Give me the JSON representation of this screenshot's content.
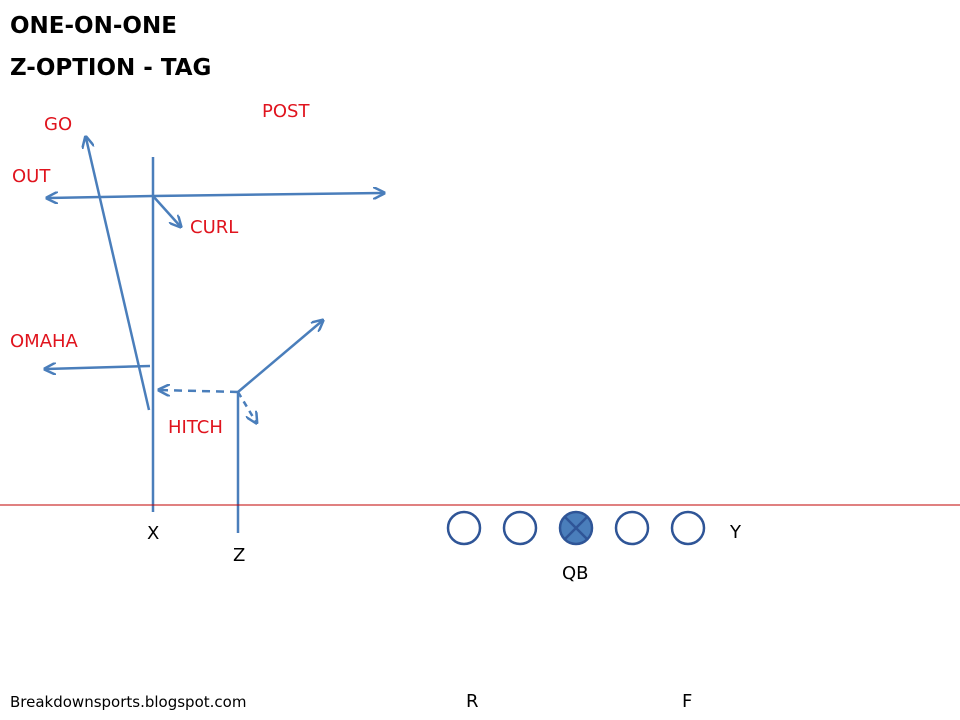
{
  "header": {
    "title": [
      "ONE-ON-ONE",
      "Z-OPTION - TAG"
    ]
  },
  "routes": {
    "labels": [
      "GO",
      "POST",
      "OUT",
      "CURL",
      "OMAHA",
      "HITCH"
    ]
  },
  "players": {
    "labels": [
      "X",
      "Z",
      "Y",
      "QB",
      "R",
      "F"
    ]
  },
  "footer": {
    "text": "Breakdownsports.blogspot.com"
  }
}
